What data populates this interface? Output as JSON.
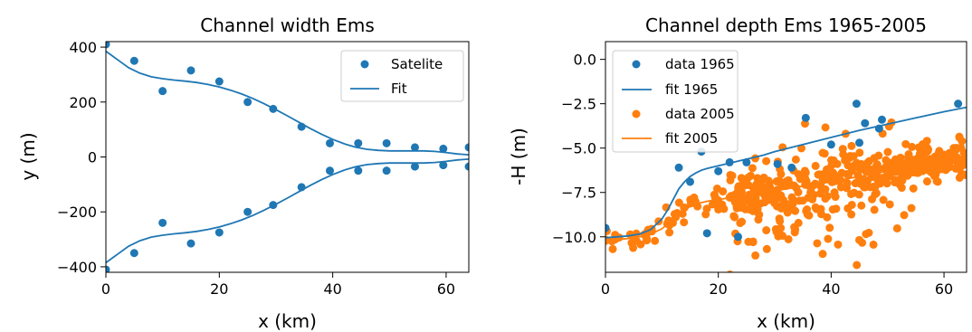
{
  "chart_data": [
    {
      "type": "scatter",
      "title": "Channel width Ems",
      "xlabel": "x (km)",
      "ylabel": "y (m)",
      "xlim": [
        0,
        64
      ],
      "ylim": [
        -420,
        420
      ],
      "xticks": [
        0,
        20,
        40,
        60
      ],
      "xtick_labels": [
        "0",
        "20",
        "40",
        "60"
      ],
      "yticks": [
        -400,
        -200,
        0,
        200,
        400
      ],
      "ytick_labels": [
        "−400",
        "−200",
        "0",
        "200",
        "400"
      ],
      "legend_position": "top-right",
      "series": [
        {
          "name": "Satelite",
          "kind": "scatter",
          "color": "#1f77b4",
          "x": [
            0,
            5,
            10,
            15,
            20,
            25,
            29.5,
            34.5,
            39.5,
            44.5,
            49.5,
            54.5,
            59.5,
            64,
            0,
            5,
            10,
            15,
            20,
            25,
            29.5,
            34.5,
            39.5,
            44.5,
            49.5,
            54.5,
            59.5,
            64
          ],
          "y": [
            410,
            350,
            240,
            315,
            275,
            200,
            175,
            110,
            50,
            50,
            50,
            35,
            30,
            35,
            -410,
            -350,
            -240,
            -315,
            -275,
            -200,
            -175,
            -110,
            -50,
            -50,
            -50,
            -35,
            -30,
            -35
          ]
        },
        {
          "name": "Fit",
          "kind": "line",
          "color": "#1f77b4",
          "x": [
            0,
            2,
            4,
            6,
            8,
            10,
            12,
            14,
            16,
            18,
            20,
            22,
            24,
            26,
            28,
            30,
            32,
            34,
            36,
            38,
            40,
            42,
            44,
            46,
            48,
            50,
            52,
            54,
            56,
            58,
            60,
            62,
            64
          ],
          "upper": [
            385,
            355,
            325,
            305,
            292,
            285,
            280,
            276,
            271,
            264,
            255,
            243,
            229,
            212,
            193,
            172,
            150,
            127,
            104,
            83,
            64,
            48,
            36,
            28,
            24,
            22,
            22,
            22,
            22,
            20,
            16,
            11,
            8
          ],
          "lower": [
            -385,
            -355,
            -325,
            -305,
            -292,
            -285,
            -280,
            -276,
            -271,
            -264,
            -255,
            -243,
            -229,
            -212,
            -193,
            -172,
            -150,
            -127,
            -104,
            -83,
            -64,
            -48,
            -36,
            -28,
            -24,
            -22,
            -22,
            -22,
            -22,
            -20,
            -16,
            -11,
            -8
          ]
        }
      ]
    },
    {
      "type": "scatter",
      "title": "Channel depth Ems 1965-2005",
      "xlabel": "x (km)",
      "ylabel": "-H (m)",
      "xlim": [
        0,
        64
      ],
      "ylim": [
        -12,
        1
      ],
      "xticks": [
        0,
        20,
        40,
        60
      ],
      "xtick_labels": [
        "0",
        "20",
        "40",
        "60"
      ],
      "yticks": [
        0,
        -2.5,
        -5,
        -7.5,
        -10
      ],
      "ytick_labels": [
        "0.0",
        "−2.5",
        "−5.0",
        "−7.5",
        "−10.0"
      ],
      "legend_position": "top-left",
      "series": [
        {
          "name": "data 1965",
          "kind": "scatter",
          "color": "#1f77b4",
          "x": [
            0,
            13,
            15,
            17,
            18,
            20,
            22,
            23.5,
            25,
            30.5,
            33,
            35.5,
            40,
            44.5,
            45,
            46,
            48.5,
            49,
            62.5
          ],
          "y": [
            -9.5,
            -6.1,
            -6.9,
            -5.2,
            -9.8,
            -6.3,
            -5.8,
            -10.0,
            -5.8,
            -5.9,
            -6.1,
            -3.3,
            -4.8,
            -2.5,
            -4.7,
            -3.6,
            -3.9,
            -3.4,
            -2.5
          ]
        },
        {
          "name": "fit 1965",
          "kind": "line",
          "color": "#1f77b4",
          "x": [
            0,
            2,
            4,
            6,
            8,
            10,
            11,
            12,
            13,
            14,
            15,
            16,
            17,
            18,
            20,
            22,
            24,
            26,
            28,
            30,
            35,
            40,
            45,
            50,
            55,
            60,
            64
          ],
          "y": [
            -10.05,
            -10.0,
            -9.95,
            -9.85,
            -9.6,
            -9.0,
            -8.5,
            -7.9,
            -7.3,
            -6.9,
            -6.6,
            -6.4,
            -6.25,
            -6.15,
            -6.0,
            -5.85,
            -5.7,
            -5.55,
            -5.4,
            -5.2,
            -4.8,
            -4.4,
            -4.0,
            -3.65,
            -3.3,
            -2.95,
            -2.7
          ]
        },
        {
          "name": "data 2005",
          "kind": "scatter",
          "color": "#ff7f0e",
          "generator": "noisy_around_fit",
          "seed": 7,
          "count": 520
        },
        {
          "name": "fit 2005",
          "kind": "line",
          "color": "#ff7f0e",
          "x": [
            0,
            2,
            4,
            6,
            8,
            10,
            11,
            12,
            13,
            14,
            15,
            16,
            18,
            20,
            22,
            24,
            26,
            28,
            30,
            35,
            40,
            45,
            50,
            55,
            60,
            64
          ],
          "y": [
            -10.2,
            -10.15,
            -10.1,
            -10.0,
            -9.85,
            -9.55,
            -9.3,
            -9.0,
            -8.7,
            -8.5,
            -8.3,
            -8.15,
            -8.0,
            -7.9,
            -7.8,
            -7.7,
            -7.6,
            -7.5,
            -7.4,
            -7.15,
            -6.9,
            -6.6,
            -6.3,
            -6.0,
            -5.75,
            -5.55
          ]
        }
      ]
    }
  ]
}
